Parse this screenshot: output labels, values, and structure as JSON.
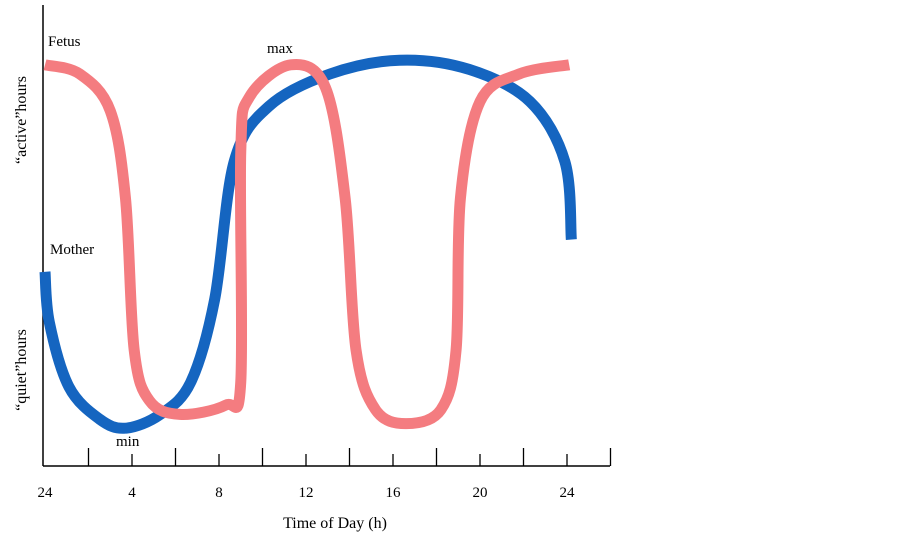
{
  "chart_data": {
    "type": "line",
    "title": "",
    "xlabel": "Time of Day (h)",
    "ylabel_top": "“active”hours",
    "ylabel_bottom": "“quiet”hours",
    "x_tick_labels": [
      "24",
      "4",
      "8",
      "12",
      "16",
      "20",
      "24"
    ],
    "x_tick_hours": [
      0,
      4,
      8,
      12,
      16,
      20,
      24
    ],
    "xlim": [
      0,
      26
    ],
    "ylim": [
      0,
      100
    ],
    "grid": false,
    "annotations": {
      "max": "max",
      "min": "min"
    },
    "series": [
      {
        "name": "Mother",
        "color": "#1565c0",
        "points": [
          [
            0,
            42
          ],
          [
            0.2,
            31
          ],
          [
            1.1,
            17
          ],
          [
            2.5,
            10
          ],
          [
            3.7,
            8
          ],
          [
            5.3,
            11
          ],
          [
            6.7,
            18
          ],
          [
            7.8,
            36
          ],
          [
            8.7,
            66
          ],
          [
            10.3,
            78
          ],
          [
            13.1,
            85
          ],
          [
            16.3,
            88
          ],
          [
            19.5,
            86
          ],
          [
            22.3,
            79
          ],
          [
            23.9,
            66
          ],
          [
            24.2,
            49
          ]
        ]
      },
      {
        "name": "Fetus",
        "color": "#f47c80",
        "points": [
          [
            0,
            87
          ],
          [
            1.6,
            85
          ],
          [
            3.0,
            77
          ],
          [
            3.7,
            58
          ],
          [
            4.1,
            25
          ],
          [
            4.8,
            14
          ],
          [
            6.2,
            11
          ],
          [
            8.3,
            13
          ],
          [
            9.0,
            18
          ],
          [
            9.0,
            68
          ],
          [
            9.4,
            80
          ],
          [
            11.3,
            87
          ],
          [
            12.9,
            82
          ],
          [
            13.8,
            58
          ],
          [
            14.3,
            25
          ],
          [
            15.2,
            12
          ],
          [
            16.6,
            9
          ],
          [
            18.2,
            12
          ],
          [
            18.9,
            25
          ],
          [
            19.1,
            58
          ],
          [
            20.0,
            79
          ],
          [
            21.8,
            85
          ],
          [
            24.1,
            87
          ]
        ]
      }
    ]
  }
}
